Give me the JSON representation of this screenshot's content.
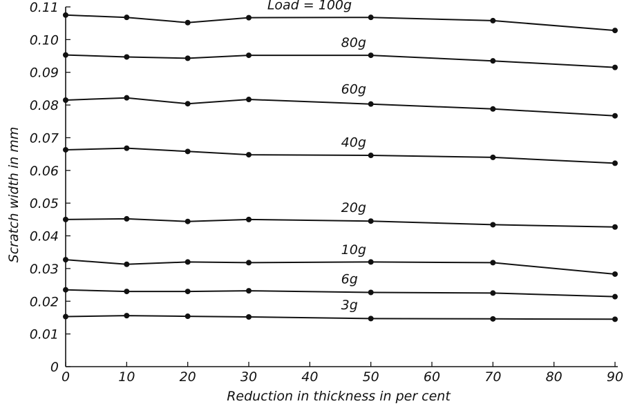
{
  "chart_data": {
    "type": "line",
    "title": "",
    "xlabel": "Reduction in thickness in per cent",
    "ylabel": "Scratch width in mm",
    "xlim": [
      0,
      90
    ],
    "ylim": [
      0,
      0.11
    ],
    "x_ticks": [
      "0",
      "10",
      "20",
      "30",
      "40",
      "50",
      "60",
      "70",
      "80",
      "90"
    ],
    "y_ticks": [
      "0",
      "0.01",
      "0.02",
      "0.03",
      "0.04",
      "0.05",
      "0.06",
      "0.07",
      "0.08",
      "0.09",
      "0.10",
      "0.11"
    ],
    "grid": false,
    "x": [
      0,
      10,
      20,
      30,
      50,
      70,
      90
    ],
    "series": [
      {
        "name": "Load = 100g",
        "values": [
          0.1075,
          0.1068,
          0.1052,
          0.1067,
          0.1068,
          0.1058,
          0.1028
        ]
      },
      {
        "name": "80g",
        "values": [
          0.0953,
          0.0947,
          0.0943,
          0.0952,
          0.0952,
          0.0935,
          0.0915
        ]
      },
      {
        "name": "60g",
        "values": [
          0.0815,
          0.0822,
          0.0804,
          0.0817,
          0.0803,
          0.0788,
          0.0767
        ]
      },
      {
        "name": "40g",
        "values": [
          0.0663,
          0.0668,
          0.0658,
          0.0648,
          0.0646,
          0.064,
          0.0622
        ]
      },
      {
        "name": "20g",
        "values": [
          0.045,
          0.0452,
          0.0444,
          0.045,
          0.0445,
          0.0434,
          0.0427
        ]
      },
      {
        "name": "10g",
        "values": [
          0.0327,
          0.0313,
          0.032,
          0.0318,
          0.032,
          0.0318,
          0.0283
        ]
      },
      {
        "name": "6g",
        "values": [
          0.0235,
          0.023,
          0.023,
          0.0232,
          0.0227,
          0.0225,
          0.0214
        ]
      },
      {
        "name": "3g",
        "values": [
          0.0153,
          0.0156,
          0.0154,
          0.0152,
          0.0147,
          0.0146,
          0.0145
        ]
      }
    ]
  }
}
